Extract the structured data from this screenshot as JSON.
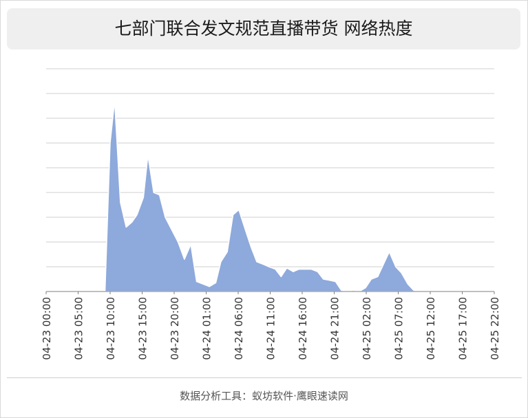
{
  "chart_data": {
    "type": "area",
    "title": "七部门联合发文规范直播带货 网络热度",
    "color": "#8ea9db",
    "grid": true,
    "ylim": [
      0,
      9
    ],
    "x_ticks": [
      "04-23 00:00",
      "04-23 05:00",
      "04-23 10:00",
      "04-23 15:00",
      "04-23 20:00",
      "04-24 01:00",
      "04-24 06:00",
      "04-24 11:00",
      "04-24 16:00",
      "04-24 21:00",
      "04-25 02:00",
      "04-25 07:00",
      "04-25 12:00",
      "04-25 17:00",
      "04-25 22:00"
    ],
    "x_hours_start": 0,
    "x_hours_end": 70,
    "series": [
      {
        "x": [
          9.2,
          10.0,
          10.7,
          11.6,
          12.5,
          13.4,
          14.2,
          15.2,
          15.9,
          16.8,
          17.7,
          18.6,
          19.6,
          20.6,
          21.6,
          22.6,
          23.5,
          24.5,
          25.5,
          26.5,
          27.3,
          28.3,
          29.2,
          30.1,
          31.1,
          32.0,
          32.9,
          33.9,
          34.8,
          35.8,
          36.7,
          37.6,
          38.6,
          39.5,
          40.5,
          41.4,
          42.4,
          43.3,
          44.3,
          45.2,
          46.1,
          47.1,
          48.0,
          48.9,
          49.9,
          50.8,
          51.8,
          52.7,
          53.6,
          54.6,
          55.5,
          56.5,
          57.4,
          58.3,
          59.3,
          60.2,
          61.1
        ],
        "y": [
          0.0,
          6.0,
          7.7,
          3.6,
          2.6,
          2.8,
          3.1,
          3.8,
          5.5,
          4.0,
          3.9,
          3.0,
          2.5,
          2.0,
          1.3,
          1.9,
          0.4,
          0.3,
          0.2,
          0.35,
          1.2,
          1.6,
          3.1,
          3.3,
          2.5,
          1.8,
          1.2,
          1.1,
          1.0,
          0.9,
          0.6,
          0.95,
          0.8,
          0.9,
          0.9,
          0.9,
          0.8,
          0.5,
          0.45,
          0.4,
          0.05,
          0.0,
          0.05,
          0.0,
          0.15,
          0.5,
          0.6,
          1.1,
          1.6,
          1.0,
          0.75,
          0.3,
          0.05,
          0.0,
          0.0,
          0.0,
          0.0
        ]
      }
    ]
  },
  "footer": {
    "source": "数据分析工具：蚁坊软件·鹰眼速读网"
  }
}
